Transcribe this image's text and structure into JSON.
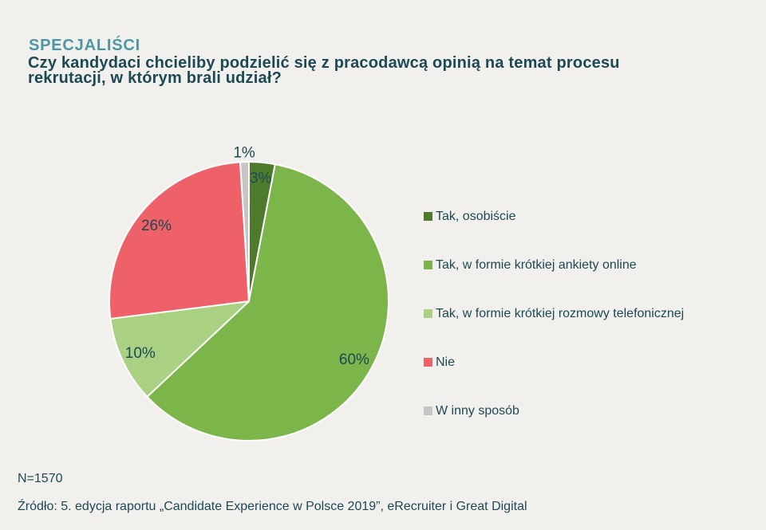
{
  "header": {
    "eyebrow": "SPECJALIŚCI",
    "title_lines": [
      "Czy kandydaci chcieliby podzielić się z pracodawcą opinią na temat procesu",
      "rekrutacji, w którym brali udział?"
    ]
  },
  "chart_data": {
    "type": "pie",
    "title": "Czy kandydaci chcieliby podzielić się z pracodawcą opinią na temat procesu rekrutacji, w którym brali udział?",
    "start_angle_deg": 0,
    "direction": "clockwise",
    "value_suffix": "%",
    "legend_position": "right",
    "slices": [
      {
        "label": "Tak, osobiście",
        "value": 3,
        "color": "#4e7b2b"
      },
      {
        "label": "Tak, w formie krótkiej ankiety online",
        "value": 60,
        "color": "#7cb54a"
      },
      {
        "label": "Tak, w formie krótkiej rozmowy telefonicznej",
        "value": 10,
        "color": "#aad182"
      },
      {
        "label": "Nie",
        "value": 26,
        "color": "#ef6168"
      },
      {
        "label": "W inny sposób",
        "value": 1,
        "color": "#c6c5c3"
      }
    ]
  },
  "footer": {
    "sample": "N=1570",
    "source": "Źródło: 5. edycja raportu „Candidate Experience w Polsce 2019”, eRecruiter i Great Digital"
  },
  "colors": {
    "background": "#f1f0ed",
    "eyebrow": "#4d97a5",
    "text": "#1c4956",
    "slice_border": "#ffffff"
  }
}
